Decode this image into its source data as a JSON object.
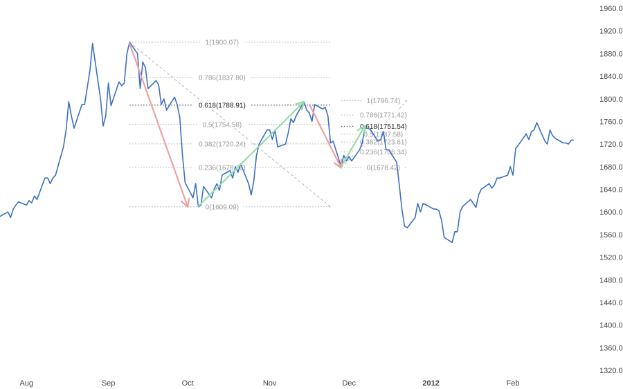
{
  "chart_data": {
    "type": "line",
    "title": "",
    "y_axis": {
      "side": "right",
      "min": 1320,
      "max": 1960,
      "ticks": [
        "1960.00",
        "1920.00",
        "1880.00",
        "1840.00",
        "1800.00",
        "1760.00",
        "1720.00",
        "1680.00",
        "1640.00",
        "1600.00",
        "1560.00",
        "1520.00",
        "1480.00",
        "1440.00",
        "1400.00",
        "1360.00",
        "1320.00"
      ]
    },
    "x_axis": {
      "type": "date",
      "range": [
        "2011-07-22",
        "2012-02-29"
      ],
      "ticks": [
        {
          "label": "Aug",
          "date": "2011-08-01",
          "bold": false
        },
        {
          "label": "Sep",
          "date": "2011-09-01",
          "bold": false
        },
        {
          "label": "Oct",
          "date": "2011-10-01",
          "bold": false
        },
        {
          "label": "Nov",
          "date": "2011-11-01",
          "bold": false
        },
        {
          "label": "Dec",
          "date": "2011-12-01",
          "bold": false
        },
        {
          "label": "2012",
          "date": "2012-01-01",
          "bold": true
        },
        {
          "label": "Feb",
          "date": "2012-02-01",
          "bold": false
        }
      ]
    },
    "series": [
      {
        "color": "#3a6fc4",
        "points": [
          [
            "2011-07-22",
            1592
          ],
          [
            "2011-07-25",
            1600
          ],
          [
            "2011-07-26",
            1590
          ],
          [
            "2011-07-27",
            1605
          ],
          [
            "2011-07-28",
            1612
          ],
          [
            "2011-07-29",
            1618
          ],
          [
            "2011-08-01",
            1612
          ],
          [
            "2011-08-02",
            1620
          ],
          [
            "2011-08-03",
            1616
          ],
          [
            "2011-08-04",
            1628
          ],
          [
            "2011-08-05",
            1622
          ],
          [
            "2011-08-08",
            1660
          ],
          [
            "2011-08-09",
            1660
          ],
          [
            "2011-08-10",
            1650
          ],
          [
            "2011-08-11",
            1660
          ],
          [
            "2011-08-12",
            1665
          ],
          [
            "2011-08-15",
            1715
          ],
          [
            "2011-08-16",
            1745
          ],
          [
            "2011-08-17",
            1795
          ],
          [
            "2011-08-18",
            1770
          ],
          [
            "2011-08-19",
            1748
          ],
          [
            "2011-08-22",
            1790
          ],
          [
            "2011-08-23",
            1790
          ],
          [
            "2011-08-24",
            1820
          ],
          [
            "2011-08-25",
            1850
          ],
          [
            "2011-08-26",
            1898
          ],
          [
            "2011-08-29",
            1800
          ],
          [
            "2011-08-30",
            1752
          ],
          [
            "2011-08-31",
            1770
          ],
          [
            "2011-09-01",
            1828
          ],
          [
            "2011-09-02",
            1788
          ],
          [
            "2011-09-05",
            1830
          ],
          [
            "2011-09-06",
            1823
          ],
          [
            "2011-09-07",
            1828
          ],
          [
            "2011-09-08",
            1880
          ],
          [
            "2011-09-09",
            1900
          ],
          [
            "2011-09-12",
            1880
          ],
          [
            "2011-09-13",
            1818
          ],
          [
            "2011-09-14",
            1865
          ],
          [
            "2011-09-15",
            1855
          ],
          [
            "2011-09-16",
            1818
          ],
          [
            "2011-09-19",
            1832
          ],
          [
            "2011-09-20",
            1825
          ],
          [
            "2011-09-21",
            1790
          ],
          [
            "2011-09-22",
            1800
          ],
          [
            "2011-09-23",
            1780
          ],
          [
            "2011-09-26",
            1803
          ],
          [
            "2011-09-27",
            1790
          ],
          [
            "2011-09-28",
            1767
          ],
          [
            "2011-09-29",
            1700
          ],
          [
            "2011-09-30",
            1652
          ],
          [
            "2011-10-03",
            1625
          ],
          [
            "2011-10-04",
            1650
          ],
          [
            "2011-10-05",
            1609
          ],
          [
            "2011-10-06",
            1612
          ],
          [
            "2011-10-07",
            1645
          ],
          [
            "2011-10-10",
            1625
          ],
          [
            "2011-10-11",
            1640
          ],
          [
            "2011-10-12",
            1650
          ],
          [
            "2011-10-13",
            1638
          ],
          [
            "2011-10-14",
            1665
          ],
          [
            "2011-10-17",
            1673
          ],
          [
            "2011-10-18",
            1660
          ],
          [
            "2011-10-19",
            1680
          ],
          [
            "2011-10-20",
            1670
          ],
          [
            "2011-10-21",
            1685
          ],
          [
            "2011-10-24",
            1650
          ],
          [
            "2011-10-25",
            1630
          ],
          [
            "2011-10-26",
            1655
          ],
          [
            "2011-10-27",
            1700
          ],
          [
            "2011-10-28",
            1720
          ],
          [
            "2011-10-31",
            1745
          ],
          [
            "2011-11-01",
            1745
          ],
          [
            "2011-11-02",
            1728
          ],
          [
            "2011-11-03",
            1745
          ],
          [
            "2011-11-04",
            1715
          ],
          [
            "2011-11-07",
            1720
          ],
          [
            "2011-11-08",
            1740
          ],
          [
            "2011-11-09",
            1765
          ],
          [
            "2011-11-10",
            1758
          ],
          [
            "2011-11-11",
            1770
          ],
          [
            "2011-11-14",
            1795
          ],
          [
            "2011-11-15",
            1780
          ],
          [
            "2011-11-16",
            1775
          ],
          [
            "2011-11-17",
            1760
          ],
          [
            "2011-11-18",
            1790
          ],
          [
            "2011-11-21",
            1782
          ],
          [
            "2011-11-22",
            1785
          ],
          [
            "2011-11-23",
            1770
          ],
          [
            "2011-11-24",
            1722
          ],
          [
            "2011-11-25",
            1725
          ],
          [
            "2011-11-28",
            1680
          ],
          [
            "2011-11-29",
            1700
          ],
          [
            "2011-11-30",
            1690
          ],
          [
            "2011-12-01",
            1698
          ],
          [
            "2011-12-02",
            1690
          ],
          [
            "2011-12-05",
            1710
          ],
          [
            "2011-12-06",
            1722
          ],
          [
            "2011-12-07",
            1748
          ],
          [
            "2011-12-08",
            1748
          ],
          [
            "2011-12-09",
            1746
          ],
          [
            "2011-12-12",
            1725
          ],
          [
            "2011-12-13",
            1728
          ],
          [
            "2011-12-14",
            1742
          ],
          [
            "2011-12-15",
            1710
          ],
          [
            "2011-12-16",
            1710
          ],
          [
            "2011-12-19",
            1688
          ],
          [
            "2011-12-20",
            1648
          ],
          [
            "2011-12-21",
            1605
          ],
          [
            "2011-12-22",
            1575
          ],
          [
            "2011-12-23",
            1572
          ],
          [
            "2011-12-26",
            1590
          ],
          [
            "2011-12-27",
            1615
          ],
          [
            "2011-12-28",
            1600
          ],
          [
            "2011-12-29",
            1615
          ],
          [
            "2011-12-30",
            1613
          ],
          [
            "2012-01-02",
            1605
          ],
          [
            "2012-01-03",
            1605
          ],
          [
            "2012-01-04",
            1602
          ],
          [
            "2012-01-05",
            1585
          ],
          [
            "2012-01-06",
            1555
          ],
          [
            "2012-01-09",
            1546
          ],
          [
            "2012-01-10",
            1565
          ],
          [
            "2012-01-11",
            1565
          ],
          [
            "2012-01-12",
            1600
          ],
          [
            "2012-01-13",
            1610
          ],
          [
            "2012-01-16",
            1622
          ],
          [
            "2012-01-17",
            1615
          ],
          [
            "2012-01-18",
            1608
          ],
          [
            "2012-01-19",
            1630
          ],
          [
            "2012-01-20",
            1640
          ],
          [
            "2012-01-23",
            1650
          ],
          [
            "2012-01-24",
            1642
          ],
          [
            "2012-01-25",
            1648
          ],
          [
            "2012-01-26",
            1660
          ],
          [
            "2012-01-27",
            1660
          ],
          [
            "2012-01-30",
            1665
          ],
          [
            "2012-01-31",
            1680
          ],
          [
            "2012-02-01",
            1665
          ],
          [
            "2012-02-02",
            1712
          ],
          [
            "2012-02-03",
            1718
          ],
          [
            "2012-02-06",
            1738
          ],
          [
            "2012-02-07",
            1728
          ],
          [
            "2012-02-08",
            1742
          ],
          [
            "2012-02-09",
            1745
          ],
          [
            "2012-02-10",
            1758
          ],
          [
            "2012-02-13",
            1726
          ],
          [
            "2012-02-14",
            1720
          ],
          [
            "2012-02-15",
            1745
          ],
          [
            "2012-02-16",
            1735
          ],
          [
            "2012-02-17",
            1730
          ],
          [
            "2012-02-20",
            1722
          ],
          [
            "2012-02-21",
            1722
          ],
          [
            "2012-02-22",
            1720
          ],
          [
            "2012-02-23",
            1727
          ],
          [
            "2012-02-24",
            1727
          ]
        ]
      }
    ],
    "fib_retracements": [
      {
        "diagonal_from": [
          "2011-09-09",
          1900.07
        ],
        "diagonal_to": [
          "2011-11-24",
          1609.09
        ],
        "line_from_date": "2011-09-09",
        "line_to_date": "2011-11-24",
        "label_anchor_date": "2011-10-14",
        "levels": [
          {
            "value": 1900.07,
            "label": "1(1900.07)",
            "emphasis": false
          },
          {
            "value": 1837.8,
            "label": "0.786(1837.80)",
            "emphasis": false
          },
          {
            "value": 1788.91,
            "label": "0.618(1788.91)",
            "emphasis": true
          },
          {
            "value": 1754.58,
            "label": "0.5(1754.58)",
            "emphasis": false
          },
          {
            "value": 1720.24,
            "label": "0.382(1720.24)",
            "emphasis": false
          },
          {
            "value": 1678.76,
            "label": "0.236(1678.76)",
            "emphasis": false
          },
          {
            "value": 1609.09,
            "label": "0(1609.09)",
            "emphasis": false
          }
        ]
      },
      {
        "diagonal_from": [
          "2011-11-28",
          1678.42
        ],
        "diagonal_to": [
          "2011-12-23",
          1796.74
        ],
        "line_from_date": "2011-11-28",
        "line_to_date": "2011-12-23",
        "label_anchor_date": "2011-12-14",
        "levels": [
          {
            "value": 1796.74,
            "label": "1(1796.74)",
            "emphasis": false
          },
          {
            "value": 1771.42,
            "label": "0.786(1771.42)",
            "emphasis": false
          },
          {
            "value": 1751.54,
            "label": "0.618(1751.54)",
            "emphasis": true
          },
          {
            "value": 1737.58,
            "label": "0.5(1737.58)",
            "emphasis": false
          },
          {
            "value": 1723.61,
            "label": "0.382(1723.61)",
            "emphasis": false
          },
          {
            "value": 1706.34,
            "label": "0.236(1706.34)",
            "emphasis": false
          },
          {
            "value": 1678.42,
            "label": "0(1678.42)",
            "emphasis": false
          }
        ]
      }
    ],
    "arrows": [
      {
        "color": "#f0a0a0",
        "from": [
          "2011-09-09",
          1898
        ],
        "to": [
          "2011-10-01",
          1609
        ]
      },
      {
        "color": "#98dca8",
        "from": [
          "2011-10-05",
          1610
        ],
        "to": [
          "2011-11-14",
          1795
        ]
      },
      {
        "color": "#f0a0a0",
        "from": [
          "2011-11-16",
          1790
        ],
        "to": [
          "2011-11-28",
          1678
        ]
      },
      {
        "color": "#98dca8",
        "from": [
          "2011-11-28",
          1680
        ],
        "to": [
          "2011-12-07",
          1752
        ]
      }
    ],
    "grid": false,
    "legend": "none"
  }
}
